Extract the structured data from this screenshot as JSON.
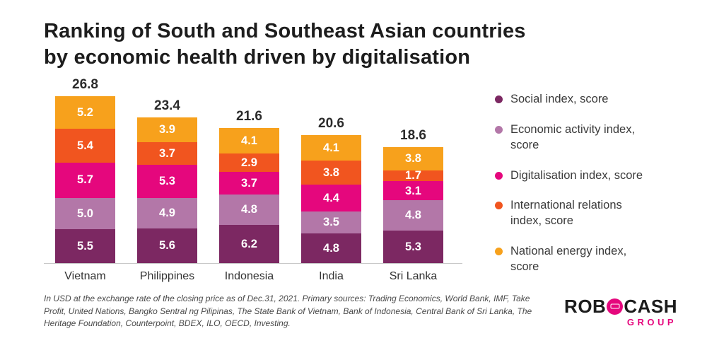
{
  "title": {
    "line1": "Ranking of South and Southeast Asian countries",
    "line2": "by economic health driven by digitalisation"
  },
  "chart_data": {
    "type": "bar",
    "stacked": true,
    "title": "Ranking of South and Southeast Asian countries by economic health driven by digitalisation",
    "categories": [
      "Vietnam",
      "Philippines",
      "Indonesia",
      "India",
      "Sri Lanka"
    ],
    "totals": [
      26.8,
      23.4,
      21.6,
      20.6,
      18.6
    ],
    "series": [
      {
        "name": "Social index, score",
        "color": "#7c2862",
        "values": [
          5.5,
          5.6,
          6.2,
          4.8,
          5.3
        ]
      },
      {
        "name": "Economic activity index, score",
        "color": "#b377a8",
        "values": [
          5.0,
          4.9,
          4.8,
          3.5,
          4.8
        ]
      },
      {
        "name": "Digitalisation index, score",
        "color": "#e5077d",
        "values": [
          5.7,
          5.3,
          3.7,
          4.4,
          3.1
        ]
      },
      {
        "name": "International relations index, score",
        "color": "#f1551f",
        "values": [
          5.4,
          3.7,
          2.9,
          3.8,
          1.7
        ]
      },
      {
        "name": "National energy index, score",
        "color": "#f7a11c",
        "values": [
          5.2,
          3.9,
          4.1,
          4.1,
          3.8
        ]
      }
    ],
    "value_labels": true,
    "legend_position": "right",
    "ylim": [
      0,
      26.8
    ],
    "grid": false
  },
  "legend": {
    "items": [
      {
        "label": "Social index, score",
        "color": "#7c2862"
      },
      {
        "label": "Economic activity index, score",
        "color": "#b377a8"
      },
      {
        "label": "Digitalisation index, score",
        "color": "#e5077d"
      },
      {
        "label": "International relations index, score",
        "color": "#f1551f"
      },
      {
        "label": "National energy index, score",
        "color": "#f7a11c"
      }
    ]
  },
  "footnote": "In USD at the exchange rate of the closing price as of Dec.31, 2021. Primary sources: Trading Economics, World Bank, IMF, Take Profit, United Nations, Bangko Sentral ng Pilipinas, The State Bank of Vietnam, Bank of Indonesia, Central Bank of Sri Lanka, The Heritage Foundation, Counterpoint, BDEX, ILO, OECD, Investing.",
  "logo": {
    "part1": "ROB",
    "part2": "CASH",
    "group": "GROUP"
  }
}
